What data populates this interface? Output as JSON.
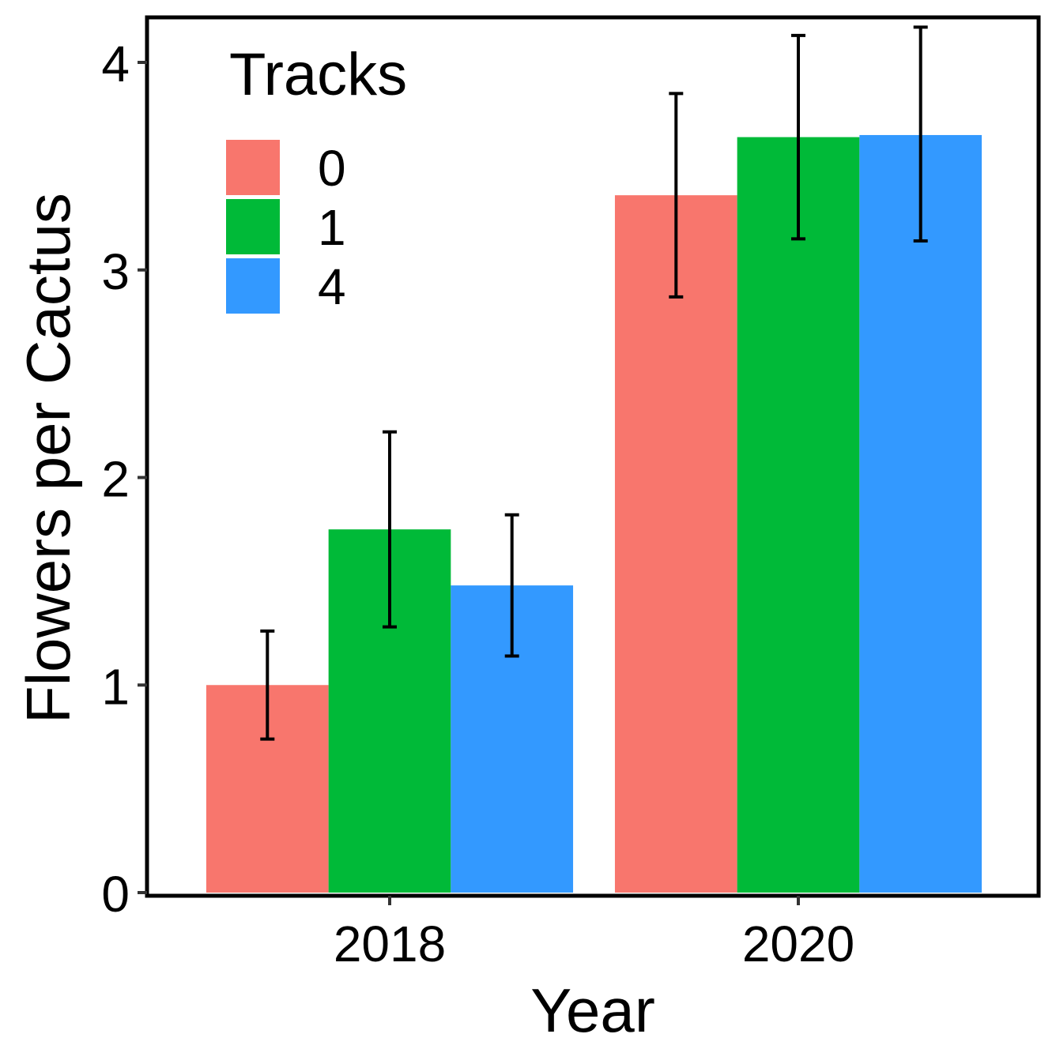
{
  "chart_data": {
    "type": "bar",
    "title": "",
    "xlabel": "Year",
    "ylabel": "Flowers per Cactus",
    "categories": [
      "2018",
      "2020"
    ],
    "ylim": [
      0,
      4.2
    ],
    "yticks": [
      0,
      1,
      2,
      3,
      4
    ],
    "yticks_labels": [
      "0",
      "1",
      "2",
      "3",
      "4"
    ],
    "grid": false,
    "legend": {
      "title": "Tracks",
      "placement": "top-left"
    },
    "series": [
      {
        "name": "0",
        "color": "#F8766D",
        "values": [
          1.0,
          3.36
        ],
        "err_low": [
          0.74,
          2.87
        ],
        "err_high": [
          1.26,
          3.85
        ]
      },
      {
        "name": "1",
        "color": "#00BA38",
        "values": [
          1.75,
          3.64
        ],
        "err_low": [
          1.28,
          3.15
        ],
        "err_high": [
          2.22,
          4.13
        ]
      },
      {
        "name": "4",
        "color": "#3399FF",
        "values": [
          1.48,
          3.65
        ],
        "err_low": [
          1.14,
          3.14
        ],
        "err_high": [
          1.82,
          4.17
        ]
      }
    ]
  }
}
